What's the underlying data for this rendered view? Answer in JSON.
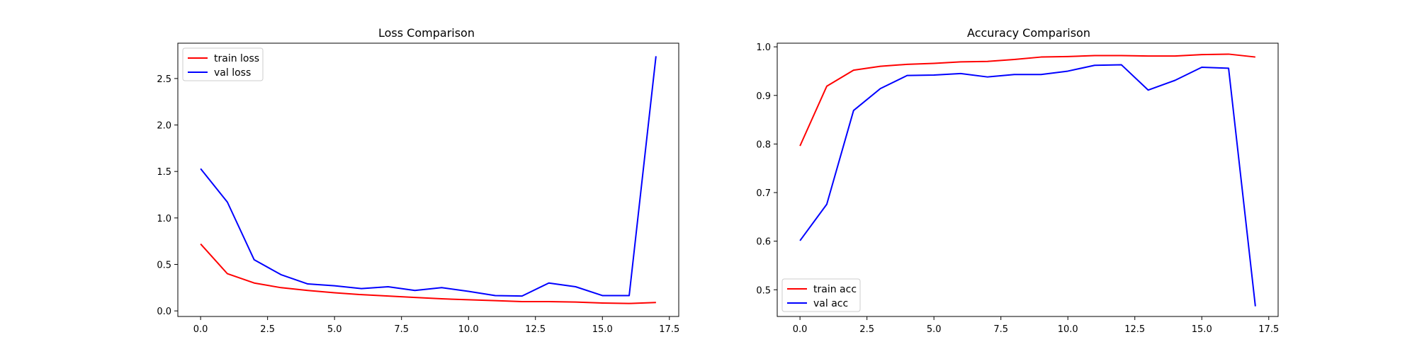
{
  "chart_data": [
    {
      "type": "line",
      "title": "Loss Comparison",
      "xlabel": "",
      "ylabel": "",
      "xlim": [
        -0.85,
        17.85
      ],
      "ylim": [
        -0.06,
        2.88
      ],
      "xticks": [
        0.0,
        2.5,
        5.0,
        7.5,
        10.0,
        12.5,
        15.0,
        17.5
      ],
      "xtick_labels": [
        "0.0",
        "2.5",
        "5.0",
        "7.5",
        "10.0",
        "12.5",
        "15.0",
        "17.5"
      ],
      "yticks": [
        0.0,
        0.5,
        1.0,
        1.5,
        2.0,
        2.5
      ],
      "ytick_labels": [
        "0.0",
        "0.5",
        "1.0",
        "1.5",
        "2.0",
        "2.5"
      ],
      "grid": false,
      "legend_position": "upper-left",
      "x": [
        0,
        1,
        2,
        3,
        4,
        5,
        6,
        7,
        8,
        9,
        10,
        11,
        12,
        13,
        14,
        15,
        16,
        17
      ],
      "series": [
        {
          "name": "train loss",
          "color": "#ff0000",
          "values": [
            0.72,
            0.4,
            0.3,
            0.25,
            0.22,
            0.195,
            0.175,
            0.16,
            0.145,
            0.13,
            0.12,
            0.11,
            0.1,
            0.1,
            0.095,
            0.085,
            0.08,
            0.09
          ]
        },
        {
          "name": "val loss",
          "color": "#0000ff",
          "values": [
            1.53,
            1.17,
            0.55,
            0.39,
            0.29,
            0.27,
            0.24,
            0.26,
            0.22,
            0.25,
            0.21,
            0.165,
            0.16,
            0.3,
            0.26,
            0.165,
            0.165,
            2.74
          ]
        }
      ]
    },
    {
      "type": "line",
      "title": "Accuracy Comparison",
      "xlabel": "",
      "ylabel": "",
      "xlim": [
        -0.85,
        17.85
      ],
      "ylim": [
        0.445,
        1.0075
      ],
      "xticks": [
        0.0,
        2.5,
        5.0,
        7.5,
        10.0,
        12.5,
        15.0,
        17.5
      ],
      "xtick_labels": [
        "0.0",
        "2.5",
        "5.0",
        "7.5",
        "10.0",
        "12.5",
        "15.0",
        "17.5"
      ],
      "yticks": [
        0.5,
        0.6,
        0.7,
        0.8,
        0.9,
        1.0
      ],
      "ytick_labels": [
        "0.5",
        "0.6",
        "0.7",
        "0.8",
        "0.9",
        "1.0"
      ],
      "grid": false,
      "legend_position": "lower-left",
      "x": [
        0,
        1,
        2,
        3,
        4,
        5,
        6,
        7,
        8,
        9,
        10,
        11,
        12,
        13,
        14,
        15,
        16,
        17
      ],
      "series": [
        {
          "name": "train acc",
          "color": "#ff0000",
          "values": [
            0.796,
            0.919,
            0.952,
            0.96,
            0.964,
            0.966,
            0.969,
            0.97,
            0.974,
            0.979,
            0.98,
            0.982,
            0.982,
            0.981,
            0.981,
            0.984,
            0.985,
            0.979
          ]
        },
        {
          "name": "val acc",
          "color": "#0000ff",
          "values": [
            0.601,
            0.676,
            0.869,
            0.914,
            0.941,
            0.942,
            0.945,
            0.938,
            0.943,
            0.943,
            0.95,
            0.962,
            0.963,
            0.911,
            0.931,
            0.958,
            0.956,
            0.466
          ]
        }
      ]
    }
  ]
}
